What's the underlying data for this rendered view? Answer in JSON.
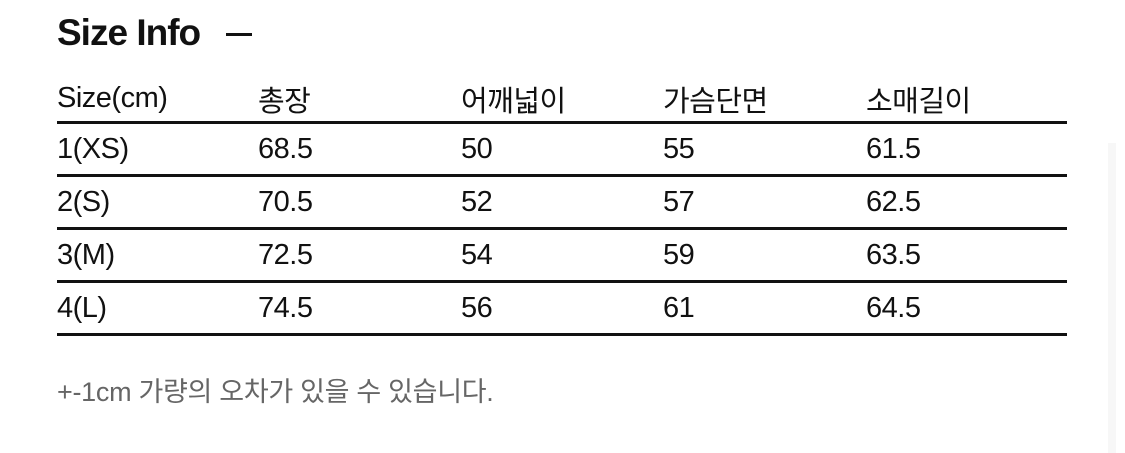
{
  "title": "Size Info",
  "collapse_icon": "minus-icon",
  "table": {
    "headers": [
      "Size(cm)",
      "총장",
      "어깨넓이",
      "가슴단면",
      "소매길이"
    ],
    "rows": [
      [
        "1(XS)",
        "68.5",
        "50",
        "55",
        "61.5"
      ],
      [
        "2(S)",
        "70.5",
        "52",
        "57",
        "62.5"
      ],
      [
        "3(M)",
        "72.5",
        "54",
        "59",
        "63.5"
      ],
      [
        "4(L)",
        "74.5",
        "56",
        "61",
        "64.5"
      ]
    ]
  },
  "note": "+-1cm 가량의 오차가 있을 수 있습니다."
}
